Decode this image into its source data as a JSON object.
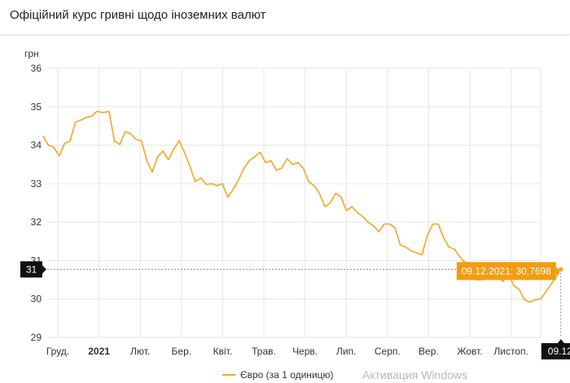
{
  "title": "Офіційний курс гривні щодо іноземних валют",
  "watermark": "Активация Windows",
  "colors": {
    "line": "#f5a623",
    "tooltip_bg": "#f39c12",
    "tag_bg": "#111111",
    "grid": "#e6e6e6"
  },
  "chart_data": {
    "type": "line",
    "ylabel": "грн",
    "ylim": [
      29,
      36
    ],
    "y_ticks": [
      29,
      30,
      31,
      32,
      33,
      34,
      35,
      36
    ],
    "x_ticks": [
      "Груд.",
      "2021",
      "Лют.",
      "Бер.",
      "Квіт.",
      "Трав.",
      "Черв.",
      "Лип.",
      "Серп.",
      "Вер.",
      "Жовт.",
      "Листоп."
    ],
    "grid": true,
    "legend_position": "bottom",
    "series": [
      {
        "name": "Євро (за 1 одиницю)",
        "x": [
          "2020-11-20",
          "2020-11-24",
          "2020-11-28",
          "2020-12-02",
          "2020-12-06",
          "2020-12-10",
          "2020-12-14",
          "2020-12-18",
          "2020-12-22",
          "2020-12-26",
          "2020-12-30",
          "2021-01-04",
          "2021-01-08",
          "2021-01-12",
          "2021-01-16",
          "2021-01-20",
          "2021-01-24",
          "2021-01-28",
          "2021-02-01",
          "2021-02-05",
          "2021-02-09",
          "2021-02-13",
          "2021-02-17",
          "2021-02-21",
          "2021-02-25",
          "2021-03-01",
          "2021-03-05",
          "2021-03-09",
          "2021-03-13",
          "2021-03-17",
          "2021-03-21",
          "2021-03-25",
          "2021-03-29",
          "2021-04-02",
          "2021-04-06",
          "2021-04-10",
          "2021-04-14",
          "2021-04-18",
          "2021-04-22",
          "2021-04-26",
          "2021-04-30",
          "2021-05-04",
          "2021-05-08",
          "2021-05-12",
          "2021-05-16",
          "2021-05-20",
          "2021-05-24",
          "2021-05-28",
          "2021-06-01",
          "2021-06-05",
          "2021-06-09",
          "2021-06-13",
          "2021-06-17",
          "2021-06-21",
          "2021-06-25",
          "2021-06-29",
          "2021-07-03",
          "2021-07-07",
          "2021-07-11",
          "2021-07-15",
          "2021-07-19",
          "2021-07-23",
          "2021-07-27",
          "2021-07-31",
          "2021-08-04",
          "2021-08-08",
          "2021-08-12",
          "2021-08-16",
          "2021-08-20",
          "2021-08-24",
          "2021-08-28",
          "2021-09-01",
          "2021-09-05",
          "2021-09-09",
          "2021-09-13",
          "2021-09-17",
          "2021-09-21",
          "2021-09-25",
          "2021-09-29",
          "2021-10-03",
          "2021-10-07",
          "2021-10-11",
          "2021-10-15",
          "2021-10-19",
          "2021-10-23",
          "2021-10-27",
          "2021-10-31",
          "2021-11-04",
          "2021-11-08",
          "2021-11-12",
          "2021-11-16",
          "2021-11-20",
          "2021-11-24",
          "2021-11-28",
          "2021-12-02",
          "2021-12-06",
          "2021-12-09"
        ],
        "values": [
          34.25,
          34.0,
          33.95,
          33.72,
          34.05,
          34.1,
          34.6,
          34.65,
          34.72,
          34.75,
          34.88,
          34.85,
          34.88,
          34.1,
          34.02,
          34.35,
          34.3,
          34.15,
          34.12,
          33.6,
          33.3,
          33.7,
          33.85,
          33.62,
          33.9,
          34.12,
          33.8,
          33.45,
          33.05,
          33.15,
          32.98,
          33.0,
          32.95,
          33.0,
          32.65,
          32.85,
          33.1,
          33.4,
          33.6,
          33.7,
          33.82,
          33.55,
          33.6,
          33.35,
          33.4,
          33.65,
          33.5,
          33.55,
          33.4,
          33.05,
          32.95,
          32.75,
          32.4,
          32.5,
          32.75,
          32.65,
          32.3,
          32.4,
          32.25,
          32.15,
          32.0,
          31.9,
          31.75,
          31.95,
          31.95,
          31.85,
          31.4,
          31.35,
          31.25,
          31.2,
          31.15,
          31.65,
          31.95,
          31.95,
          31.6,
          31.35,
          31.3,
          31.1,
          30.95,
          30.75,
          30.5,
          30.5,
          30.55,
          30.6,
          30.65,
          30.45,
          30.7,
          30.35,
          30.25,
          29.98,
          29.92,
          29.98,
          30.0,
          30.2,
          30.4,
          30.6,
          30.77
        ]
      }
    ],
    "crosshair": {
      "date_label": "09.12.2021",
      "value_label": "30,7698",
      "tooltip": "09.12.2021: 30,7698",
      "y_tag": "31",
      "x_tag": "09.12"
    }
  }
}
